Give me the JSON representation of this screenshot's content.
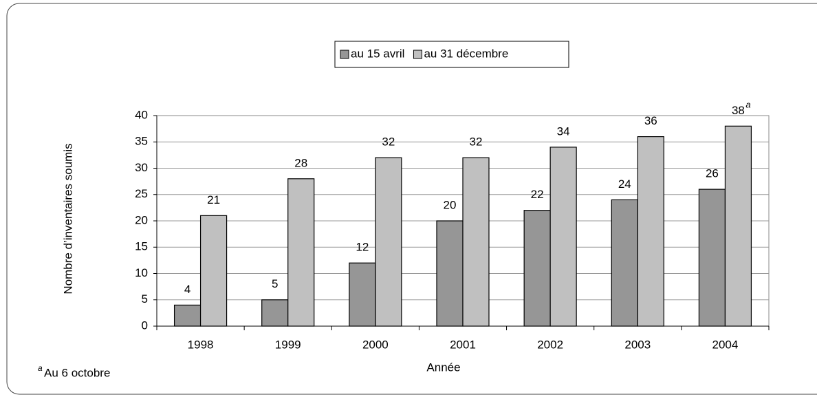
{
  "chart_data": {
    "type": "bar",
    "categories": [
      "1998",
      "1999",
      "2000",
      "2001",
      "2002",
      "2003",
      "2004"
    ],
    "series": [
      {
        "name": "au 15 avril",
        "color": "#969696",
        "values": [
          4,
          5,
          12,
          20,
          22,
          24,
          26
        ]
      },
      {
        "name": "au 31 décembre",
        "color": "#c0c0c0",
        "values": [
          21,
          28,
          32,
          32,
          34,
          36,
          38
        ]
      }
    ],
    "ylim": [
      0,
      40
    ],
    "yticks": [
      0,
      5,
      10,
      15,
      20,
      25,
      30,
      35,
      40
    ],
    "grid": true,
    "x_label": "Année",
    "y_label": "Nombre d’inventaires soumis",
    "legend": "top",
    "annotations": [
      {
        "text": "a",
        "series": "au 31 décembre",
        "category": "2004"
      }
    ],
    "footnote": {
      "marker": "a",
      "text": "Au 6 octobre"
    }
  }
}
